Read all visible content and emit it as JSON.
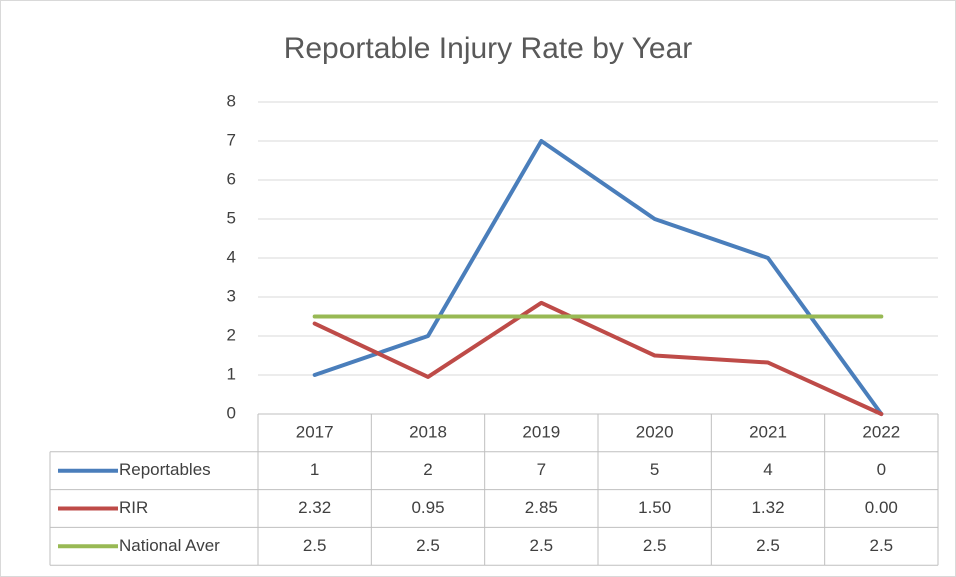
{
  "chart_data": {
    "type": "line",
    "title": "Reportable Injury Rate by Year",
    "categories": [
      "2017",
      "2018",
      "2019",
      "2020",
      "2021",
      "2022"
    ],
    "series": [
      {
        "name": "Reportables",
        "color": "#4a7ebb",
        "values": [
          1,
          2,
          7,
          5,
          4,
          0
        ]
      },
      {
        "name": "RIR",
        "color": "#be4b48",
        "values": [
          2.32,
          0.95,
          2.85,
          1.5,
          1.32,
          0
        ],
        "value_labels": [
          "2.32",
          "0.95",
          "2.85",
          "1.50",
          "1.32",
          "0.00"
        ]
      },
      {
        "name": "National Aver",
        "color": "#98b954",
        "values": [
          2.5,
          2.5,
          2.5,
          2.5,
          2.5,
          2.5
        ]
      }
    ],
    "ylim": [
      0,
      8
    ],
    "yticks": [
      0,
      1,
      2,
      3,
      4,
      5,
      6,
      7,
      8
    ],
    "grid": true,
    "legend": "data-table"
  }
}
